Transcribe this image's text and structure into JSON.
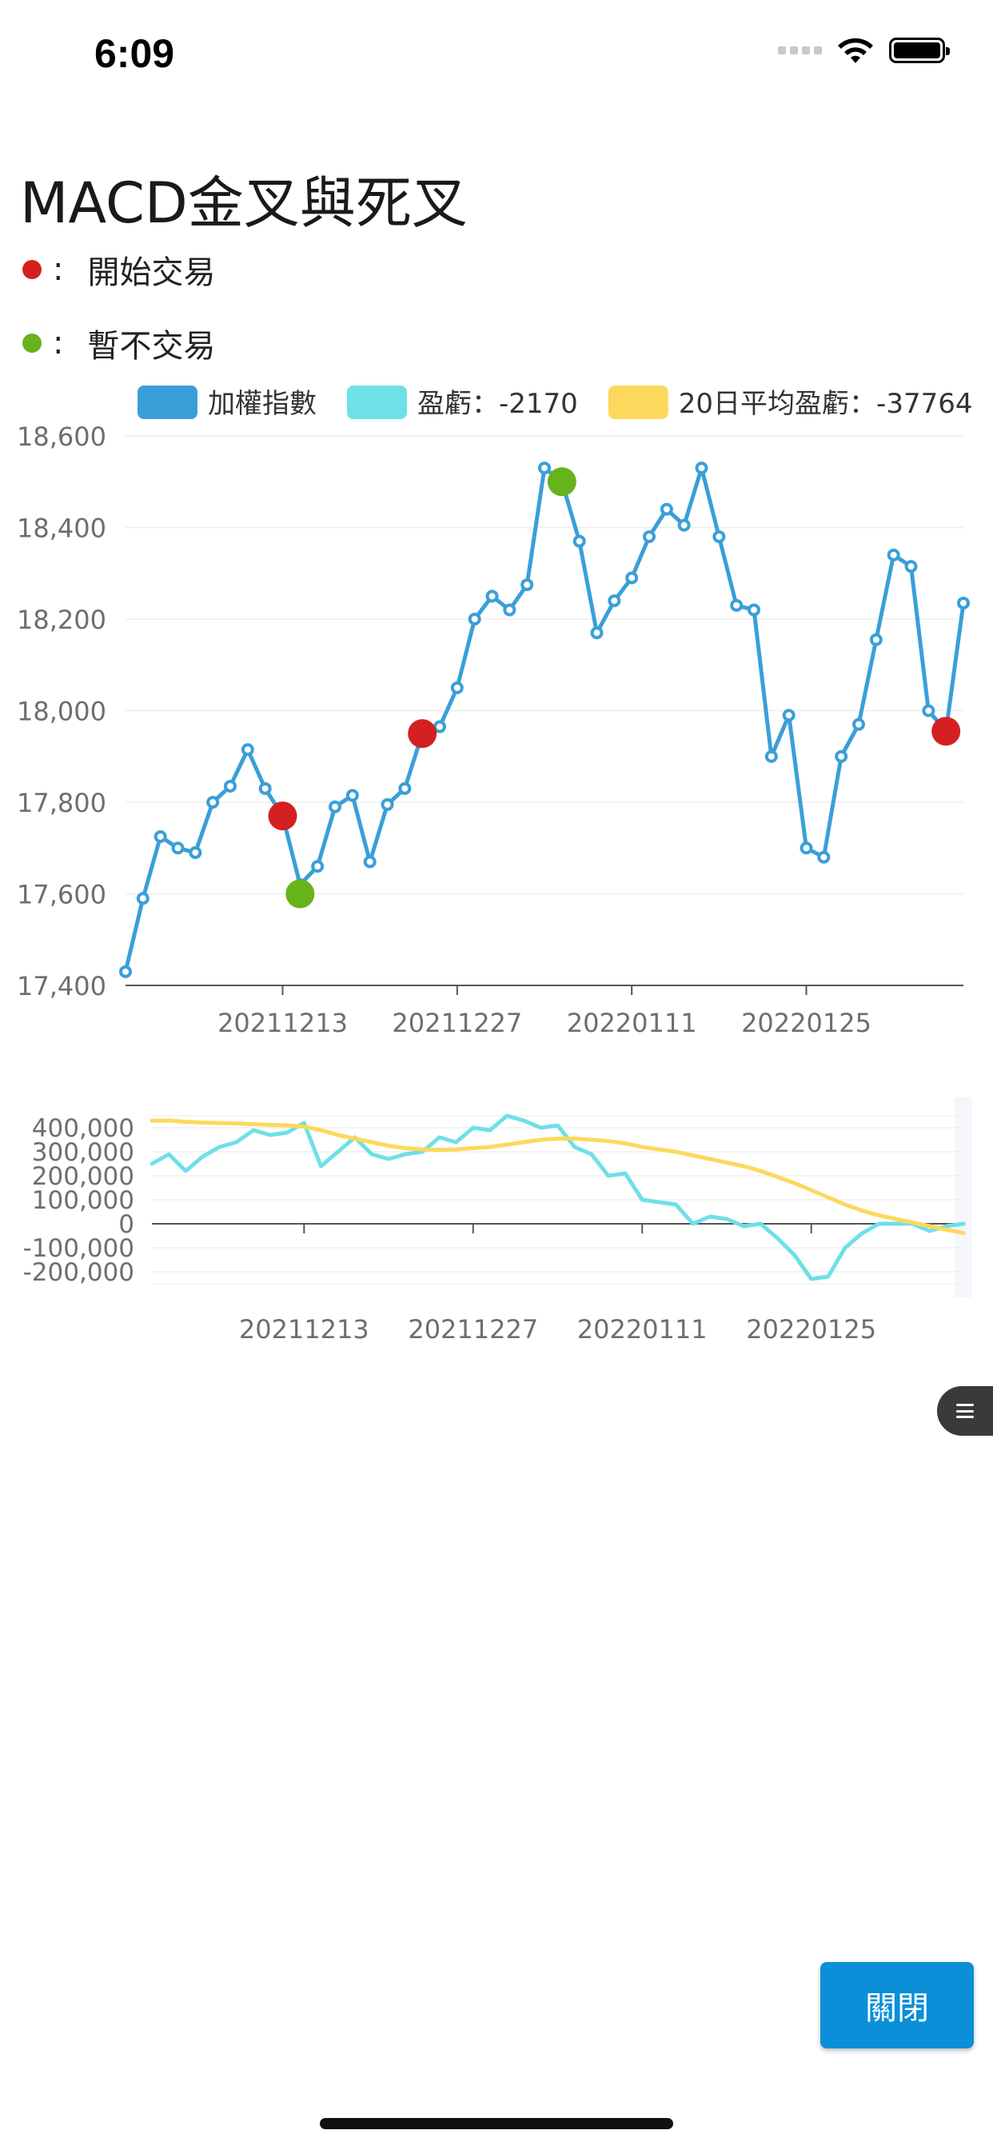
{
  "status_bar": {
    "time": "6:09"
  },
  "title": "MACD金叉與死叉",
  "legend_notes": [
    {
      "color": "#d42020",
      "text": "開始交易"
    },
    {
      "color": "#66b31a",
      "text": "暫不交易"
    }
  ],
  "colon": ":",
  "close_label": "關閉",
  "icons": [
    "wifi-icon",
    "battery-icon",
    "signal-icon",
    "menu-icon"
  ],
  "chart_data": [
    {
      "type": "line",
      "legend": [
        {
          "name": "加權指數",
          "color": "#3a9fd8"
        },
        {
          "name": "盈虧：-2170",
          "color": "#6ee0e8"
        },
        {
          "name": "20日平均盈虧：-37764",
          "color": "#fcd95c"
        }
      ],
      "ylim": [
        17400,
        18600
      ],
      "yticks": [
        17400,
        17600,
        17800,
        18000,
        18200,
        18400,
        18600
      ],
      "ytick_labels": [
        "17,400",
        "17,600",
        "17,800",
        "18,000",
        "18,200",
        "18,400",
        "18,600"
      ],
      "xtick_labels": [
        {
          "index": 9,
          "label": "20211213"
        },
        {
          "index": 19,
          "label": "20211227"
        },
        {
          "index": 29,
          "label": "20220111"
        },
        {
          "index": 39,
          "label": "20220125"
        }
      ],
      "series": [
        {
          "name": "加權指數",
          "color": "#3a9fd8",
          "values": [
            17430,
            17590,
            17725,
            17700,
            17690,
            17800,
            17835,
            17915,
            17830,
            17770,
            17620,
            17660,
            17790,
            17815,
            17670,
            17795,
            17830,
            17950,
            17965,
            18050,
            18200,
            18250,
            18220,
            18275,
            18530,
            18500,
            18370,
            18170,
            18240,
            18290,
            18380,
            18440,
            18405,
            18530,
            18380,
            18230,
            18220,
            17900,
            17990,
            17700,
            17680,
            17900,
            17970,
            18155,
            18340,
            18315,
            18000,
            17955,
            18235
          ]
        }
      ],
      "markers": [
        {
          "index": 9,
          "value": 17770,
          "color": "#d42020"
        },
        {
          "index": 10,
          "value": 17600,
          "color": "#66b31a"
        },
        {
          "index": 17,
          "value": 17950,
          "color": "#d42020"
        },
        {
          "index": 25,
          "value": 18500,
          "color": "#66b31a"
        },
        {
          "index": 47,
          "value": 17955,
          "color": "#d42020"
        }
      ]
    },
    {
      "type": "line",
      "ylim": [
        -300000,
        500000
      ],
      "yticks": [
        400000,
        300000,
        200000,
        100000,
        0,
        -100000,
        -200000
      ],
      "ytick_labels": [
        "400,000",
        "300,000",
        "200,000",
        "100,000",
        "0",
        "-100,000",
        "-200,000"
      ],
      "xtick_labels": [
        {
          "index": 9,
          "label": "20211213"
        },
        {
          "index": 19,
          "label": "20211227"
        },
        {
          "index": 29,
          "label": "20220111"
        },
        {
          "index": 39,
          "label": "20220125"
        }
      ],
      "series": [
        {
          "name": "盈虧",
          "color": "#6ee0e8",
          "values": [
            250000,
            290000,
            220000,
            280000,
            320000,
            340000,
            390000,
            370000,
            380000,
            420000,
            240000,
            300000,
            360000,
            290000,
            270000,
            290000,
            300000,
            360000,
            340000,
            400000,
            390000,
            450000,
            430000,
            400000,
            410000,
            320000,
            290000,
            200000,
            210000,
            100000,
            90000,
            80000,
            0,
            30000,
            20000,
            -10000,
            0,
            -60000,
            -130000,
            -230000,
            -220000,
            -100000,
            -40000,
            0,
            0,
            0,
            -30000,
            -10000,
            0
          ]
        },
        {
          "name": "20日平均盈虧",
          "color": "#fcd95c",
          "values": [
            430000,
            430000,
            425000,
            422000,
            420000,
            418000,
            415000,
            412000,
            410000,
            405000,
            390000,
            370000,
            355000,
            340000,
            325000,
            315000,
            310000,
            308000,
            310000,
            315000,
            320000,
            330000,
            340000,
            350000,
            355000,
            355000,
            350000,
            345000,
            335000,
            320000,
            310000,
            300000,
            285000,
            270000,
            255000,
            240000,
            220000,
            195000,
            170000,
            140000,
            110000,
            80000,
            55000,
            35000,
            20000,
            5000,
            -10000,
            -25000,
            -37764
          ]
        }
      ]
    }
  ]
}
